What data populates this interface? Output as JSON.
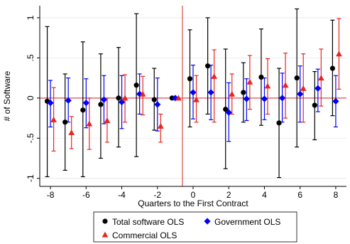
{
  "chart_data": {
    "type": "scatter",
    "xlabel": "Quarters to the First Contract",
    "ylabel": "# of Software",
    "xlim": [
      -8.6,
      8.6
    ],
    "ylim": [
      -1.1,
      1.15
    ],
    "x_ticks": [
      -8,
      -6,
      -4,
      -2,
      0,
      2,
      4,
      6,
      8
    ],
    "x_tick_labels": [
      "-8",
      "-6",
      "-4",
      "-2",
      "0",
      "2",
      "4",
      "6",
      "8"
    ],
    "y_ticks": [
      -1,
      -0.5,
      0,
      0.5,
      1
    ],
    "y_tick_labels": [
      "-1",
      "-.5",
      "0",
      ".5",
      "1"
    ],
    "reference_lines": {
      "horizontal_y": 0,
      "vertical_x": -0.6,
      "color": "#d62728"
    },
    "legend_position": "bottom",
    "series": [
      {
        "name": "Total software OLS",
        "marker": "circle",
        "color": "#000000",
        "x": [
          -8,
          -7,
          -6,
          -5,
          -4,
          -3,
          -2,
          -1,
          0,
          1,
          2,
          3,
          4,
          5,
          6,
          7,
          8
        ],
        "y": [
          -0.04,
          -0.3,
          -0.15,
          -0.08,
          0.0,
          0.16,
          -0.02,
          0.0,
          0.24,
          0.4,
          -0.14,
          0.07,
          0.26,
          -0.31,
          0.25,
          -0.09,
          0.37
        ],
        "ci_low": [
          -0.98,
          -0.9,
          -0.98,
          -0.75,
          -0.61,
          -0.73,
          -0.4,
          0.0,
          -0.36,
          -0.2,
          -0.88,
          -0.3,
          -0.34,
          -0.99,
          -0.61,
          -0.52,
          -0.22
        ],
        "ci_high": [
          0.89,
          0.3,
          0.7,
          0.55,
          0.63,
          1.05,
          0.37,
          0.0,
          0.85,
          1.0,
          0.61,
          0.44,
          0.86,
          0.37,
          1.11,
          0.33,
          0.97
        ]
      },
      {
        "name": "Government OLS",
        "marker": "diamond",
        "color": "#0000ff",
        "x": [
          -8,
          -7,
          -6,
          -5,
          -4,
          -3,
          -2,
          -1,
          0,
          1,
          2,
          3,
          4,
          5,
          6,
          7,
          8
        ],
        "y": [
          -0.06,
          -0.03,
          -0.06,
          -0.02,
          -0.05,
          0.05,
          -0.08,
          0.0,
          0.07,
          0.07,
          -0.18,
          -0.01,
          -0.01,
          0.0,
          0.05,
          0.12,
          -0.04
        ],
        "ci_low": [
          -0.36,
          -0.3,
          -0.37,
          -0.32,
          -0.38,
          -0.2,
          -0.41,
          0.0,
          -0.26,
          -0.27,
          -0.54,
          -0.28,
          -0.27,
          -0.3,
          -0.3,
          -0.17,
          -0.36
        ],
        "ci_high": [
          0.22,
          0.25,
          0.24,
          0.28,
          0.28,
          0.3,
          0.25,
          0.0,
          0.41,
          0.41,
          0.19,
          0.24,
          0.25,
          0.31,
          0.4,
          0.36,
          0.28
        ]
      },
      {
        "name": "Commercial OLS",
        "marker": "triangle",
        "color": "#e8261e",
        "x": [
          -8,
          -7,
          -6,
          -5,
          -4,
          -3,
          -2,
          -1,
          0,
          1,
          2,
          3,
          4,
          5,
          6,
          7,
          8
        ],
        "y": [
          -0.27,
          -0.43,
          -0.32,
          -0.28,
          0.0,
          0.05,
          -0.35,
          0.0,
          -0.02,
          0.27,
          0.05,
          0.2,
          0.15,
          0.16,
          0.12,
          0.25,
          0.55
        ],
        "ci_low": [
          -0.66,
          -0.63,
          -0.64,
          -0.55,
          -0.3,
          -0.21,
          -0.55,
          0.0,
          -0.3,
          -0.3,
          -0.2,
          -0.14,
          -0.2,
          -0.25,
          -0.3,
          -0.1,
          0.11
        ],
        "ci_high": [
          0.13,
          -0.23,
          0.0,
          0.0,
          0.29,
          0.27,
          -0.2,
          0.0,
          0.28,
          0.6,
          0.3,
          0.53,
          0.49,
          0.56,
          0.55,
          0.61,
          0.99
        ]
      }
    ]
  }
}
